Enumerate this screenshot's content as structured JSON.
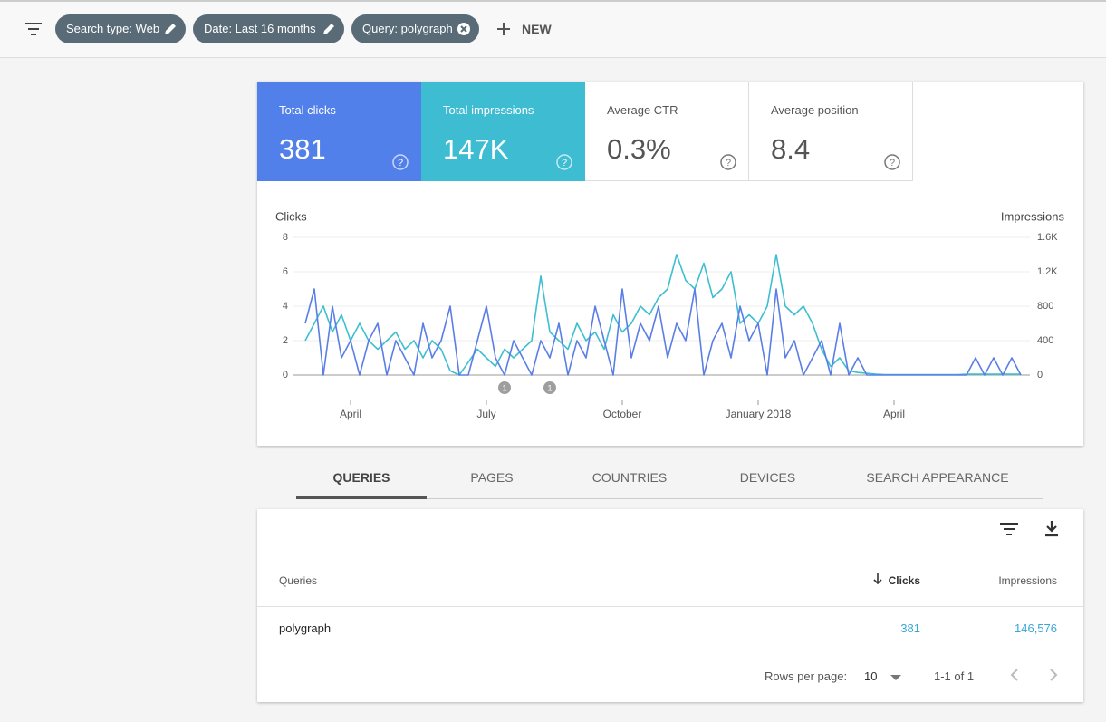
{
  "filters": [
    "Search type: Web",
    "Date: Last 16 months",
    "Query: polygraph"
  ],
  "new_button": "NEW",
  "summary": [
    {
      "label": "Total clicks",
      "value": "381"
    },
    {
      "label": "Total impressions",
      "value": "147K"
    },
    {
      "label": "Average CTR",
      "value": "0.3%"
    },
    {
      "label": "Average position",
      "value": "8.4"
    }
  ],
  "chart_data": {
    "type": "line",
    "ylabel": "Clicks",
    "y2label": "Impressions",
    "categories": [
      null,
      null,
      null,
      null,
      null,
      "April",
      null,
      null,
      null,
      null,
      null,
      null,
      null,
      null,
      null,
      null,
      null,
      null,
      null,
      null,
      "July",
      null,
      null,
      null,
      null,
      null,
      null,
      null,
      null,
      null,
      null,
      null,
      null,
      null,
      null,
      "October",
      null,
      null,
      null,
      null,
      null,
      null,
      null,
      null,
      null,
      null,
      null,
      null,
      null,
      null,
      "January 2018",
      null,
      null,
      null,
      null,
      null,
      null,
      null,
      null,
      null,
      null,
      null,
      null,
      null,
      null,
      "April",
      null,
      null,
      null,
      null,
      null,
      null,
      null,
      null,
      null,
      null,
      null,
      null,
      null,
      null
    ],
    "series": [
      {
        "name": "Clicks",
        "color": "#5a7ee6",
        "values": [
          3,
          5,
          0,
          4,
          1,
          2,
          0,
          2,
          3,
          0,
          2,
          1,
          0,
          3,
          1,
          2,
          4,
          0,
          0,
          2,
          4,
          1,
          0,
          2,
          1,
          0,
          2,
          1,
          3,
          0,
          2,
          1,
          4,
          2,
          0,
          5,
          1,
          3,
          2,
          4,
          1,
          3,
          2,
          5,
          0,
          2,
          3,
          1,
          4,
          2,
          3,
          0,
          5,
          1,
          2,
          0,
          1,
          2,
          0,
          3,
          0,
          1,
          0,
          0,
          0,
          0,
          0,
          0,
          0,
          0,
          0,
          0,
          0,
          0,
          1,
          0,
          1,
          0,
          1,
          0
        ]
      },
      {
        "name": "Impressions",
        "color": "#3ebed1",
        "axis": "y2",
        "values": [
          400,
          600,
          800,
          500,
          700,
          400,
          600,
          400,
          300,
          400,
          500,
          300,
          400,
          200,
          400,
          300,
          50,
          0,
          150,
          300,
          200,
          100,
          300,
          200,
          300,
          400,
          1150,
          500,
          400,
          300,
          600,
          400,
          500,
          300,
          700,
          500,
          600,
          800,
          700,
          900,
          1000,
          1400,
          1100,
          1000,
          1300,
          900,
          1000,
          1200,
          600,
          700,
          600,
          800,
          1400,
          800,
          700,
          800,
          600,
          300,
          100,
          200,
          50,
          30,
          20,
          10,
          5,
          5,
          5,
          5,
          5,
          5,
          5,
          5,
          5,
          10,
          10,
          10,
          10,
          10,
          10,
          10
        ]
      }
    ],
    "ylim": [
      0,
      8
    ],
    "yticks": [
      0,
      2,
      4,
      6,
      8
    ],
    "y2lim": [
      0,
      1600
    ],
    "y2ticks": [
      0,
      400,
      800,
      {
        "value": 1200,
        "label": "1.2K"
      },
      {
        "value": 1600,
        "label": "1.6K"
      }
    ],
    "grid": true,
    "annotations": [
      {
        "at": 22,
        "label": "1"
      },
      {
        "at": 27,
        "label": "1"
      }
    ]
  },
  "tabs": [
    "QUERIES",
    "PAGES",
    "COUNTRIES",
    "DEVICES",
    "SEARCH APPEARANCE"
  ],
  "table": {
    "columns": [
      "Queries",
      "Clicks",
      "Impressions"
    ],
    "rows": [
      [
        "polygraph",
        "381",
        "146,576"
      ]
    ]
  },
  "pagination": {
    "label": "Rows per page:",
    "rows": "10",
    "range": "1-1 of 1"
  }
}
